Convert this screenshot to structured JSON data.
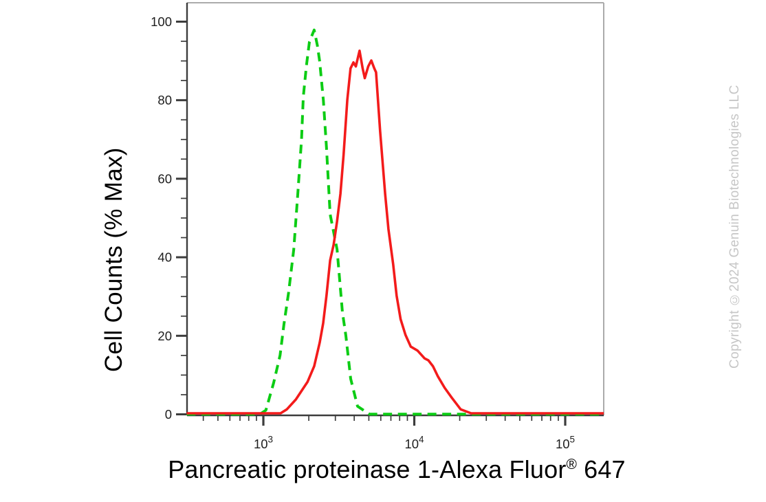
{
  "watermark": {
    "text": "Copyright ©2024 Genuin Biotechnologies LLC",
    "color": "#c6c6c6"
  },
  "axes": {
    "x": {
      "title": {
        "main": "Pancreatic proteinase 1-Alexa Fluor",
        "sup": "®",
        "tail": "647"
      },
      "scale": "log",
      "range": [
        310,
        180000
      ],
      "major_ticks": [
        1000,
        10000,
        100000
      ],
      "major_tick_exponents": [
        3,
        4,
        5
      ],
      "major_tick_base": "10",
      "minor_ticks": [
        400,
        500,
        600,
        700,
        800,
        900,
        2000,
        3000,
        4000,
        5000,
        6000,
        7000,
        8000,
        9000,
        20000,
        30000,
        40000,
        50000,
        60000,
        70000,
        80000,
        90000
      ]
    },
    "y": {
      "title": "Cell Counts (% Max)",
      "range": [
        0,
        105
      ],
      "major_ticks": [
        0,
        20,
        40,
        60,
        80,
        100
      ],
      "minor_ticks": [
        5,
        10,
        15,
        25,
        30,
        35,
        45,
        50,
        55,
        65,
        70,
        75,
        85,
        90,
        95
      ]
    }
  },
  "chart_data": {
    "type": "line",
    "subtype": "flow-cytometry-histogram",
    "title": "",
    "xlabel": "Pancreatic proteinase 1-Alexa Fluor® 647",
    "ylabel": "Cell Counts (% Max)",
    "x_scale": "log",
    "x_range": [
      310,
      180000
    ],
    "y_range": [
      0,
      105
    ],
    "grid": false,
    "legend": "none",
    "frame_color": "#ababab",
    "axis_color": "#3c3c3c",
    "tick_label_color": "#1e1e1e",
    "series": [
      {
        "name": "green-dashed-histogram",
        "color": "#0ccc14",
        "line_style": "dashed",
        "peak": {
          "x": 2170,
          "y": 98
        },
        "points": [
          [
            310,
            0
          ],
          [
            950,
            0
          ],
          [
            1040,
            1
          ],
          [
            1170,
            8
          ],
          [
            1290,
            15
          ],
          [
            1370,
            23
          ],
          [
            1470,
            31
          ],
          [
            1590,
            42
          ],
          [
            1690,
            56
          ],
          [
            1790,
            70
          ],
          [
            1840,
            81
          ],
          [
            1930,
            89
          ],
          [
            2020,
            95
          ],
          [
            2170,
            98
          ],
          [
            2280,
            94
          ],
          [
            2360,
            90
          ],
          [
            2500,
            80
          ],
          [
            2620,
            68
          ],
          [
            2770,
            51
          ],
          [
            3080,
            42
          ],
          [
            3340,
            26
          ],
          [
            3520,
            20
          ],
          [
            3790,
            9
          ],
          [
            4210,
            2
          ],
          [
            5040,
            0
          ],
          [
            180000,
            0
          ]
        ]
      },
      {
        "name": "red-solid-histogram",
        "color": "#f31b1b",
        "line_style": "solid",
        "peak": {
          "x": 4340,
          "y": 92.5
        },
        "points": [
          [
            310,
            0
          ],
          [
            1300,
            0
          ],
          [
            1430,
            1
          ],
          [
            1640,
            3.5
          ],
          [
            1960,
            8
          ],
          [
            2170,
            12
          ],
          [
            2360,
            18
          ],
          [
            2490,
            23
          ],
          [
            2620,
            30
          ],
          [
            2770,
            39
          ],
          [
            2920,
            43
          ],
          [
            3080,
            49
          ],
          [
            3240,
            56
          ],
          [
            3400,
            66
          ],
          [
            3600,
            80
          ],
          [
            3780,
            88
          ],
          [
            3950,
            89.5
          ],
          [
            4100,
            88.5
          ],
          [
            4340,
            92.5
          ],
          [
            4550,
            88
          ],
          [
            4700,
            85.5
          ],
          [
            4950,
            88.5
          ],
          [
            5190,
            90
          ],
          [
            5430,
            88
          ],
          [
            5580,
            87
          ],
          [
            5940,
            72
          ],
          [
            6410,
            56
          ],
          [
            6740,
            47
          ],
          [
            7250,
            38
          ],
          [
            7640,
            30
          ],
          [
            8120,
            24
          ],
          [
            8740,
            20
          ],
          [
            9480,
            17
          ],
          [
            10500,
            16
          ],
          [
            11700,
            14
          ],
          [
            12400,
            13.5
          ],
          [
            13300,
            12
          ],
          [
            14300,
            9.5
          ],
          [
            15900,
            6.5
          ],
          [
            17700,
            4
          ],
          [
            20300,
            1
          ],
          [
            23800,
            0
          ],
          [
            180000,
            0
          ]
        ]
      }
    ]
  }
}
